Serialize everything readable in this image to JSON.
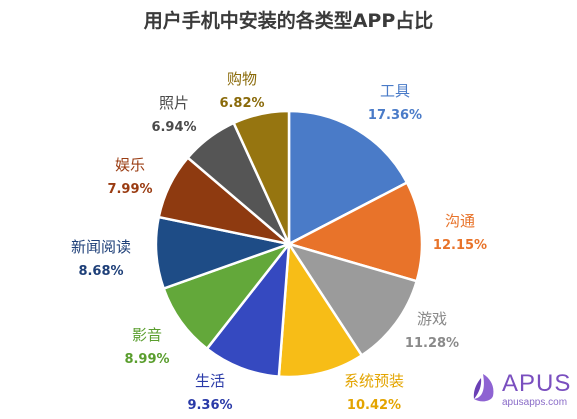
{
  "chart_data": {
    "type": "pie",
    "title": "用户手机中安装的各类型APP占比",
    "slices": [
      {
        "label": "工具",
        "value": 17.36,
        "display": "17.36%",
        "color": "#4a7bc8",
        "label_color": "#4a7bc8"
      },
      {
        "label": "沟通",
        "value": 12.15,
        "display": "12.15%",
        "color": "#e8732a",
        "label_color": "#e8732a"
      },
      {
        "label": "游戏",
        "value": 11.28,
        "display": "11.28%",
        "color": "#9b9b9b",
        "label_color": "#8a8a8a"
      },
      {
        "label": "系统预装",
        "value": 10.42,
        "display": "10.42%",
        "color": "#f7bd17",
        "label_color": "#e3a400"
      },
      {
        "label": "生活",
        "value": 9.36,
        "display": "9.36%",
        "color": "#3549c0",
        "label_color": "#2a3aa8"
      },
      {
        "label": "影音",
        "value": 8.99,
        "display": "8.99%",
        "color": "#63a83a",
        "label_color": "#5a9e2e"
      },
      {
        "label": "新闻阅读",
        "value": 8.68,
        "display": "8.68%",
        "color": "#1e4c86",
        "label_color": "#1e3f78"
      },
      {
        "label": "娱乐",
        "value": 7.99,
        "display": "7.99%",
        "color": "#8e3a10",
        "label_color": "#9a3c12"
      },
      {
        "label": "照片",
        "value": 6.94,
        "display": "6.94%",
        "color": "#555555",
        "label_color": "#4a4a4a"
      },
      {
        "label": "购物",
        "value": 6.82,
        "display": "6.82%",
        "color": "#967510",
        "label_color": "#8a6a0a"
      }
    ],
    "legend": "none",
    "start_angle": "12 o'clock, clockwise"
  },
  "logo": {
    "name": "APUS",
    "url": "apusapps.com",
    "color": "#7a4fbf"
  }
}
